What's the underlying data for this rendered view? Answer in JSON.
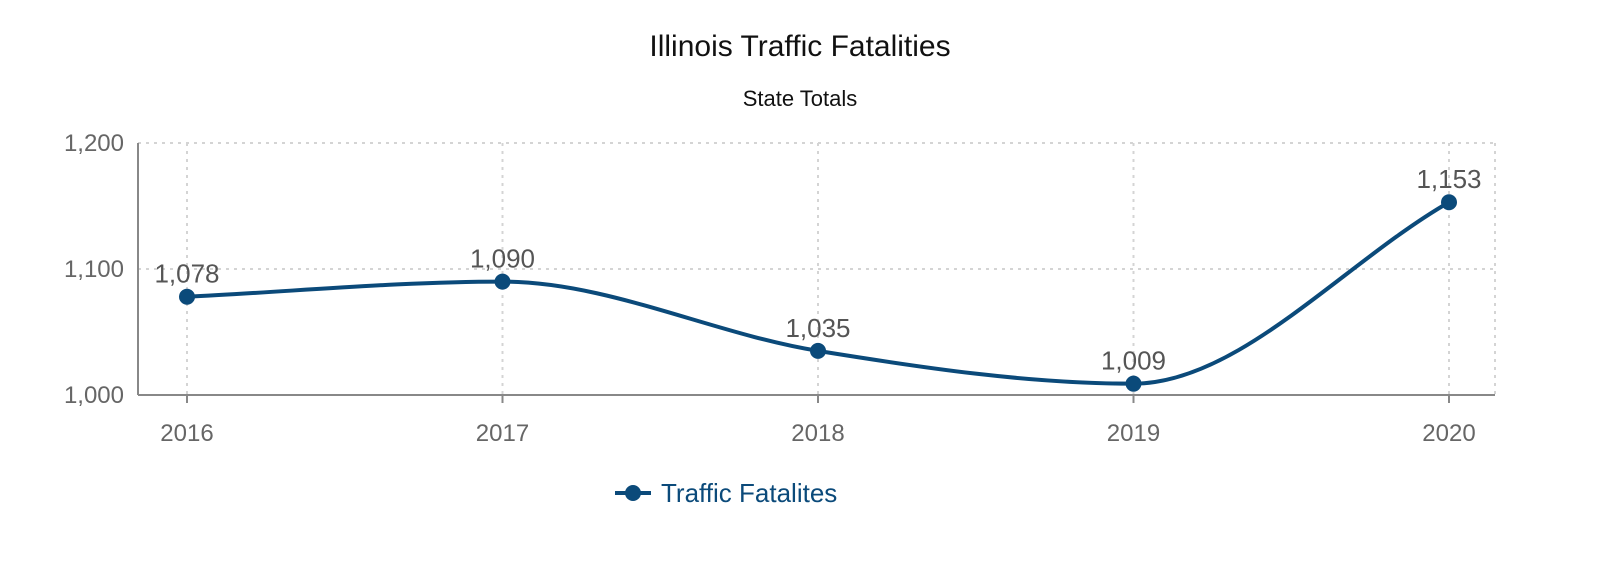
{
  "chart_data": {
    "type": "line",
    "title": "Illinois Traffic Fatalities",
    "subtitle": "State Totals",
    "categories": [
      "2016",
      "2017",
      "2018",
      "2019",
      "2020"
    ],
    "series": [
      {
        "name": "Traffic Fatalites",
        "values": [
          1078,
          1090,
          1035,
          1009,
          1153
        ],
        "data_labels": [
          "1,078",
          "1,090",
          "1,035",
          "1,009",
          "1,153"
        ],
        "color": "#0b4a7a"
      }
    ],
    "ylim": [
      1000,
      1200
    ],
    "yticks": [
      1000,
      1100,
      1200
    ],
    "ytick_labels": [
      "1,000",
      "1,100",
      "1,200"
    ],
    "grid": true,
    "legend_position": "bottom-center",
    "smooth": true
  }
}
